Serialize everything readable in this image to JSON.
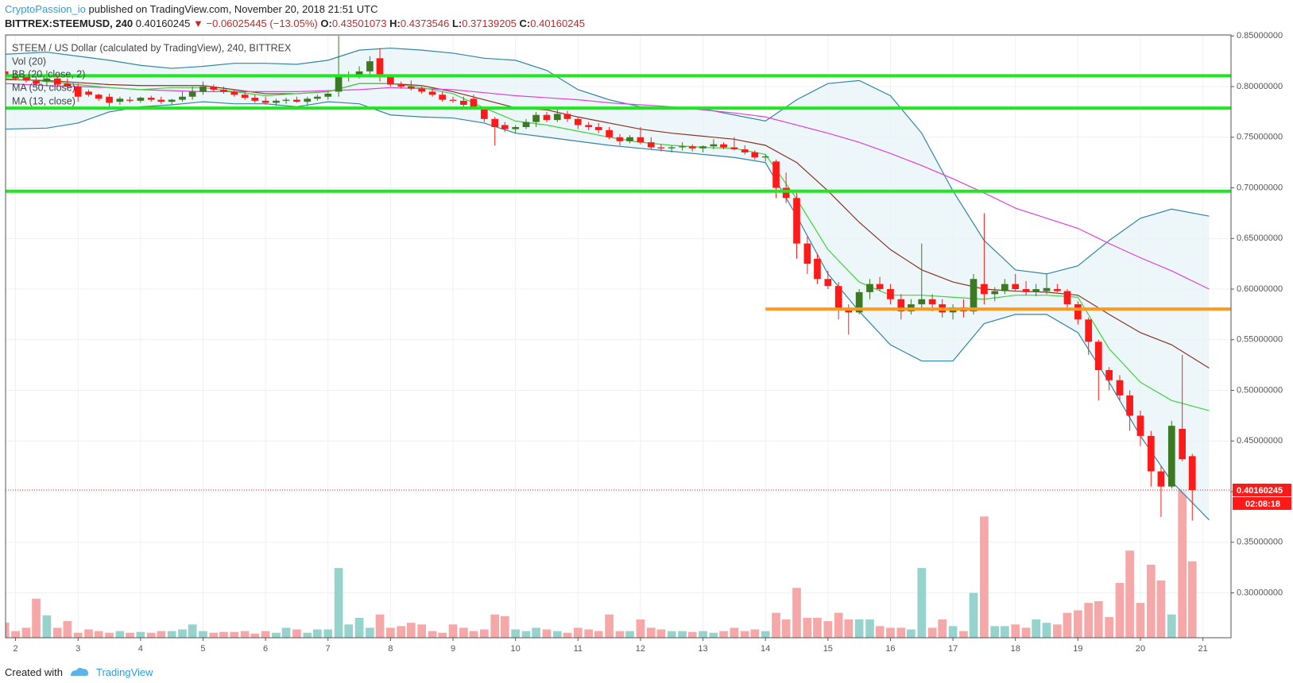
{
  "header": {
    "author": "CryptoPassion_io",
    "published": "published on TradingView.com, November 20, 2018 21:51 UTC",
    "symbol": "BITTREX:STEEMUSD, 240",
    "change": "▼ −0.06025445 (−13.05%)",
    "o": "O:",
    "h": "H:",
    "l": "L:",
    "c": "C:"
  },
  "footer": {
    "created": "Created with",
    "brand": "TradingView"
  },
  "chart_data": {
    "type": "candlestick",
    "title": "STEEM / US Dollar (calculated by TradingView), 240, BITTREX",
    "volume_name": "Vol (20)",
    "countdown": "02:08:18",
    "xlim": [
      1.84,
      21.45
    ],
    "xticks": [
      2,
      3,
      4,
      5,
      6,
      7,
      8,
      9,
      10,
      11,
      12,
      13,
      14,
      15,
      16,
      17,
      18,
      19,
      20,
      21
    ],
    "ylim": [
      0.2557,
      0.851
    ],
    "yticks": [
      {
        "value": 0.3,
        "label": "0.30000000"
      },
      {
        "value": 0.35,
        "label": "0.35000000"
      },
      {
        "value": 0.4,
        "label": "0.40000000"
      },
      {
        "value": 0.45,
        "label": "0.45000000"
      },
      {
        "value": 0.5,
        "label": "0.50000000"
      },
      {
        "value": 0.55,
        "label": "0.55000000"
      },
      {
        "value": 0.6,
        "label": "0.60000000"
      },
      {
        "value": 0.65,
        "label": "0.65000000"
      },
      {
        "value": 0.7,
        "label": "0.70000000"
      },
      {
        "value": 0.75,
        "label": "0.75000000"
      },
      {
        "value": 0.8,
        "label": "0.80000000"
      },
      {
        "value": 0.85,
        "label": "0.85000000"
      }
    ],
    "grid": true,
    "up_color": "#3b7a22",
    "down_color": "#ff1a1a",
    "volume_up_color": "#97d3cd",
    "volume_down_color": "#f6a7a7",
    "volume_ylim": [
      0,
      726
    ],
    "x": [
      1.83,
      2,
      2.17,
      2.33,
      2.5,
      2.67,
      2.83,
      3,
      3.17,
      3.33,
      3.5,
      3.67,
      3.83,
      4,
      4.17,
      4.33,
      4.5,
      4.67,
      4.83,
      5,
      5.17,
      5.33,
      5.5,
      5.67,
      5.83,
      6,
      6.17,
      6.33,
      6.5,
      6.67,
      6.83,
      7,
      7.17,
      7.33,
      7.5,
      7.67,
      7.83,
      8,
      8.17,
      8.33,
      8.5,
      8.67,
      8.83,
      9,
      9.17,
      9.33,
      9.5,
      9.67,
      9.83,
      10,
      10.17,
      10.33,
      10.5,
      10.67,
      10.83,
      11,
      11.17,
      11.33,
      11.5,
      11.67,
      11.83,
      12,
      12.17,
      12.33,
      12.5,
      12.67,
      12.83,
      13,
      13.17,
      13.33,
      13.5,
      13.67,
      13.83,
      14,
      14.17,
      14.33,
      14.5,
      14.67,
      14.83,
      15,
      15.17,
      15.33,
      15.5,
      15.67,
      15.83,
      16,
      16.17,
      16.33,
      16.5,
      16.67,
      16.83,
      17,
      17.17,
      17.33,
      17.5,
      17.67,
      17.83,
      18,
      18.17,
      18.33,
      18.5,
      18.67,
      18.83,
      19,
      19.17,
      19.33,
      19.5,
      19.67,
      19.83,
      20,
      20.17,
      20.33,
      20.5,
      20.67,
      20.83
    ],
    "open": [
      0.815,
      0.812,
      0.81,
      0.806,
      0.805,
      0.808,
      0.803,
      0.8,
      0.795,
      0.792,
      0.79,
      0.785,
      0.787,
      0.786,
      0.789,
      0.787,
      0.785,
      0.787,
      0.79,
      0.795,
      0.8,
      0.797,
      0.795,
      0.792,
      0.789,
      0.786,
      0.784,
      0.786,
      0.787,
      0.785,
      0.788,
      0.79,
      0.795,
      0.81,
      0.812,
      0.815,
      0.828,
      0.81,
      0.802,
      0.8,
      0.798,
      0.795,
      0.792,
      0.787,
      0.786,
      0.788,
      0.778,
      0.768,
      0.762,
      0.758,
      0.76,
      0.765,
      0.772,
      0.767,
      0.773,
      0.768,
      0.762,
      0.76,
      0.757,
      0.75,
      0.746,
      0.75,
      0.745,
      0.74,
      0.739,
      0.74,
      0.741,
      0.739,
      0.741,
      0.743,
      0.74,
      0.738,
      0.735,
      0.73,
      0.726,
      0.7,
      0.69,
      0.645,
      0.63,
      0.61,
      0.603,
      0.58,
      0.577,
      0.597,
      0.605,
      0.6,
      0.59,
      0.578,
      0.585,
      0.59,
      0.585,
      0.577,
      0.582,
      0.578,
      0.605,
      0.595,
      0.598,
      0.605,
      0.6,
      0.597,
      0.598,
      0.6,
      0.598,
      0.585,
      0.57,
      0.548,
      0.52,
      0.51,
      0.495,
      0.475,
      0.455,
      0.42,
      0.405,
      0.462,
      0.43501073
    ],
    "high": [
      0.818,
      0.815,
      0.812,
      0.812,
      0.816,
      0.81,
      0.808,
      0.803,
      0.797,
      0.793,
      0.793,
      0.79,
      0.79,
      0.79,
      0.791,
      0.79,
      0.788,
      0.795,
      0.8,
      0.805,
      0.802,
      0.8,
      0.797,
      0.795,
      0.792,
      0.79,
      0.788,
      0.789,
      0.79,
      0.79,
      0.792,
      0.795,
      0.85,
      0.815,
      0.82,
      0.83,
      0.838,
      0.812,
      0.805,
      0.806,
      0.8,
      0.798,
      0.795,
      0.79,
      0.79,
      0.792,
      0.78,
      0.77,
      0.765,
      0.762,
      0.768,
      0.775,
      0.775,
      0.778,
      0.776,
      0.77,
      0.765,
      0.764,
      0.76,
      0.753,
      0.752,
      0.76,
      0.75,
      0.743,
      0.742,
      0.745,
      0.743,
      0.742,
      0.748,
      0.745,
      0.75,
      0.742,
      0.737,
      0.733,
      0.728,
      0.715,
      0.695,
      0.652,
      0.635,
      0.618,
      0.607,
      0.585,
      0.6,
      0.61,
      0.612,
      0.605,
      0.595,
      0.59,
      0.645,
      0.595,
      0.59,
      0.585,
      0.59,
      0.615,
      0.675,
      0.602,
      0.61,
      0.615,
      0.608,
      0.605,
      0.615,
      0.605,
      0.6,
      0.588,
      0.572,
      0.55,
      0.523,
      0.515,
      0.5,
      0.48,
      0.46,
      0.425,
      0.47,
      0.535,
      0.4373546
    ],
    "low": [
      0.808,
      0.806,
      0.804,
      0.8,
      0.8,
      0.8,
      0.798,
      0.785,
      0.79,
      0.786,
      0.78,
      0.782,
      0.784,
      0.784,
      0.785,
      0.783,
      0.782,
      0.785,
      0.787,
      0.792,
      0.795,
      0.793,
      0.79,
      0.787,
      0.784,
      0.782,
      0.781,
      0.783,
      0.784,
      0.782,
      0.786,
      0.787,
      0.79,
      0.805,
      0.808,
      0.81,
      0.805,
      0.8,
      0.798,
      0.796,
      0.793,
      0.79,
      0.785,
      0.784,
      0.78,
      0.78,
      0.765,
      0.742,
      0.755,
      0.754,
      0.758,
      0.76,
      0.765,
      0.765,
      0.765,
      0.758,
      0.757,
      0.754,
      0.748,
      0.742,
      0.744,
      0.743,
      0.738,
      0.736,
      0.735,
      0.737,
      0.736,
      0.735,
      0.738,
      0.738,
      0.737,
      0.733,
      0.728,
      0.726,
      0.69,
      0.685,
      0.63,
      0.615,
      0.605,
      0.6,
      0.57,
      0.555,
      0.575,
      0.59,
      0.598,
      0.585,
      0.57,
      0.575,
      0.58,
      0.578,
      0.572,
      0.57,
      0.572,
      0.575,
      0.585,
      0.588,
      0.595,
      0.598,
      0.594,
      0.593,
      0.595,
      0.597,
      0.58,
      0.565,
      0.535,
      0.49,
      0.5,
      0.49,
      0.46,
      0.445,
      0.405,
      0.375,
      0.403,
      0.43,
      0.37139205
    ],
    "close": [
      0.81,
      0.808,
      0.806,
      0.803,
      0.808,
      0.802,
      0.8,
      0.79,
      0.792,
      0.788,
      0.784,
      0.788,
      0.786,
      0.789,
      0.787,
      0.785,
      0.787,
      0.79,
      0.795,
      0.8,
      0.797,
      0.795,
      0.792,
      0.789,
      0.786,
      0.784,
      0.786,
      0.787,
      0.785,
      0.788,
      0.79,
      0.793,
      0.81,
      0.812,
      0.815,
      0.825,
      0.81,
      0.802,
      0.8,
      0.798,
      0.795,
      0.792,
      0.787,
      0.786,
      0.782,
      0.778,
      0.768,
      0.76,
      0.758,
      0.76,
      0.765,
      0.772,
      0.767,
      0.773,
      0.768,
      0.762,
      0.76,
      0.757,
      0.75,
      0.746,
      0.75,
      0.745,
      0.74,
      0.739,
      0.74,
      0.741,
      0.739,
      0.741,
      0.743,
      0.74,
      0.738,
      0.735,
      0.73,
      0.731,
      0.7,
      0.69,
      0.645,
      0.625,
      0.61,
      0.603,
      0.58,
      0.577,
      0.597,
      0.605,
      0.6,
      0.59,
      0.578,
      0.585,
      0.59,
      0.585,
      0.577,
      0.582,
      0.578,
      0.61,
      0.595,
      0.598,
      0.605,
      0.6,
      0.597,
      0.6,
      0.601,
      0.598,
      0.585,
      0.57,
      0.548,
      0.52,
      0.51,
      0.495,
      0.475,
      0.455,
      0.42,
      0.405,
      0.465,
      0.432,
      0.40160245
    ],
    "volume": [
      18,
      8,
      12,
      47,
      27,
      12,
      20,
      6,
      10,
      8,
      6,
      8,
      6,
      7,
      6,
      8,
      8,
      10,
      16,
      8,
      6,
      7,
      7,
      8,
      5,
      8,
      6,
      12,
      10,
      6,
      10,
      10,
      84,
      16,
      24,
      12,
      28,
      12,
      14,
      18,
      16,
      8,
      6,
      16,
      12,
      8,
      10,
      28,
      26,
      10,
      8,
      12,
      10,
      8,
      6,
      12,
      10,
      8,
      28,
      8,
      8,
      22,
      12,
      10,
      8,
      8,
      7,
      8,
      6,
      8,
      12,
      8,
      10,
      8,
      30,
      22,
      60,
      24,
      24,
      20,
      30,
      22,
      22,
      22,
      14,
      12,
      12,
      10,
      84,
      12,
      22,
      14,
      8,
      54,
      146,
      14,
      14,
      16,
      12,
      22,
      18,
      16,
      30,
      33,
      42,
      44,
      25,
      66,
      105,
      42,
      88,
      69,
      28,
      178,
      92
    ],
    "indicator_x": [
      1.84,
      2.5,
      3,
      3.5,
      4,
      4.5,
      5,
      5.5,
      6,
      6.5,
      7,
      7.5,
      8,
      8.5,
      9,
      9.5,
      10,
      10.5,
      11,
      11.5,
      12,
      12.5,
      13,
      13.5,
      14,
      14.5,
      15,
      15.5,
      16,
      16.5,
      17,
      17.5,
      18,
      18.5,
      19,
      19.5,
      20,
      20.5,
      21.1
    ],
    "indicators": [
      {
        "name": "BB (20, close, 2)",
        "color": "#2f86a6",
        "basis_color": "#8a3324",
        "fill": "#e9f4f7",
        "upper": [
          0.832,
          0.834,
          0.83,
          0.826,
          0.821,
          0.818,
          0.82,
          0.823,
          0.823,
          0.822,
          0.826,
          0.836,
          0.838,
          0.836,
          0.833,
          0.828,
          0.826,
          0.816,
          0.797,
          0.787,
          0.78,
          0.779,
          0.778,
          0.772,
          0.766,
          0.787,
          0.803,
          0.806,
          0.791,
          0.754,
          0.697,
          0.648,
          0.619,
          0.615,
          0.623,
          0.648,
          0.67,
          0.679,
          0.672
        ],
        "basis": [
          0.807,
          0.806,
          0.804,
          0.802,
          0.801,
          0.801,
          0.801,
          0.797,
          0.793,
          0.793,
          0.795,
          0.803,
          0.803,
          0.801,
          0.795,
          0.787,
          0.779,
          0.777,
          0.77,
          0.764,
          0.758,
          0.754,
          0.751,
          0.748,
          0.742,
          0.725,
          0.697,
          0.666,
          0.639,
          0.619,
          0.607,
          0.6,
          0.598,
          0.597,
          0.594,
          0.575,
          0.557,
          0.545,
          0.522
        ],
        "lower": [
          0.758,
          0.759,
          0.764,
          0.775,
          0.78,
          0.782,
          0.785,
          0.783,
          0.783,
          0.78,
          0.785,
          0.783,
          0.772,
          0.77,
          0.769,
          0.764,
          0.754,
          0.75,
          0.746,
          0.742,
          0.739,
          0.736,
          0.733,
          0.73,
          0.725,
          0.672,
          0.615,
          0.578,
          0.545,
          0.529,
          0.529,
          0.566,
          0.575,
          0.575,
          0.557,
          0.508,
          0.455,
          0.41,
          0.372
        ]
      },
      {
        "name": "MA (50, close)",
        "color": "#e03fe0",
        "values": [
          0.803,
          0.801,
          0.8,
          0.799,
          0.797,
          0.796,
          0.795,
          0.795,
          0.795,
          0.795,
          0.796,
          0.797,
          0.799,
          0.798,
          0.797,
          0.794,
          0.791,
          0.789,
          0.787,
          0.784,
          0.782,
          0.78,
          0.777,
          0.774,
          0.77,
          0.762,
          0.754,
          0.745,
          0.734,
          0.722,
          0.709,
          0.695,
          0.68,
          0.67,
          0.66,
          0.645,
          0.631,
          0.618,
          0.6
        ]
      },
      {
        "name": "MA (13, close)",
        "color": "#3fd43f",
        "values": [
          0.808,
          0.805,
          0.802,
          0.799,
          0.797,
          0.799,
          0.799,
          0.795,
          0.791,
          0.793,
          0.795,
          0.803,
          0.803,
          0.799,
          0.793,
          0.779,
          0.766,
          0.762,
          0.756,
          0.75,
          0.745,
          0.742,
          0.74,
          0.739,
          0.733,
          0.689,
          0.639,
          0.607,
          0.594,
          0.594,
          0.592,
          0.59,
          0.594,
          0.594,
          0.592,
          0.541,
          0.508,
          0.49,
          0.48
        ]
      }
    ],
    "levels": [
      {
        "value": 0.8107,
        "color": "#1ee81e"
      },
      {
        "value": 0.7787,
        "color": "#1ee81e"
      },
      {
        "value": 0.6967,
        "color": "#1ee81e"
      },
      {
        "value": 0.5803,
        "color": "#ff9a1f",
        "from": 14
      }
    ]
  }
}
